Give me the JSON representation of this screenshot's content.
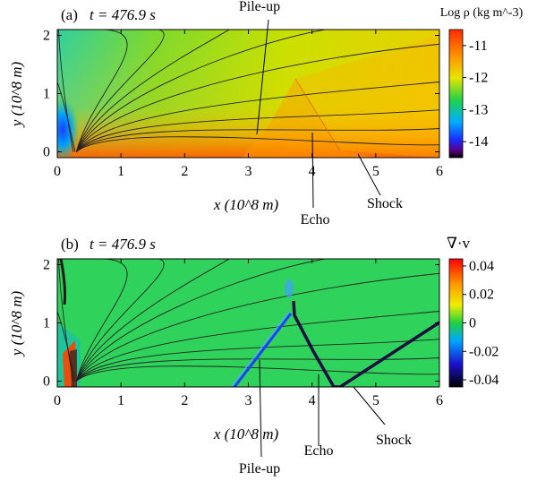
{
  "chart_data": [
    {
      "type": "heatmap",
      "panel_label": "(a)",
      "time_label": "t  = 476.9 s",
      "xlabel": "x (10^8 m)",
      "ylabel": "y (10^8 m)",
      "xlim": [
        0,
        6
      ],
      "ylim": [
        -0.1,
        2.1
      ],
      "x_ticks": [
        "0",
        "1",
        "2",
        "3",
        "4",
        "5",
        "6"
      ],
      "y_ticks": [
        "0",
        "1",
        "2"
      ],
      "colorbar": {
        "label": "Log ρ (kg  m^-3)",
        "range": [
          -14.5,
          -10.5
        ],
        "ticks": [
          "-11",
          "-12",
          "-13",
          "-14"
        ],
        "tick_values": [
          -11,
          -12,
          -13,
          -14
        ]
      },
      "annotations": [
        {
          "text": "Pile-up",
          "x": 3.1,
          "y": 0.3
        },
        {
          "text": "Echo",
          "x": 3.8,
          "y": 0.35
        },
        {
          "text": "Shock",
          "x": 4.7,
          "y": 0.02
        }
      ]
    },
    {
      "type": "heatmap",
      "panel_label": "(b)",
      "time_label": "t  = 476.9 s",
      "xlabel": "x (10^8 m)",
      "ylabel": "y (10^8 m)",
      "xlim": [
        0,
        6
      ],
      "ylim": [
        -0.1,
        2.1
      ],
      "x_ticks": [
        "0",
        "1",
        "2",
        "3",
        "4",
        "5",
        "6"
      ],
      "y_ticks": [
        "0",
        "1",
        "2"
      ],
      "colorbar": {
        "label": "∇·v",
        "range": [
          -0.045,
          0.045
        ],
        "ticks": [
          "0.04",
          "0.02",
          "0",
          "-0.02",
          "-0.04"
        ],
        "tick_values": [
          0.04,
          0.02,
          0,
          -0.02,
          -0.04
        ]
      },
      "annotations": [
        {
          "text": "Pile-up",
          "x": 3.1,
          "y": 0.15
        },
        {
          "text": "Echo",
          "x": 3.8,
          "y": 0.2
        },
        {
          "text": "Shock",
          "x": 4.5,
          "y": -0.05
        }
      ]
    }
  ]
}
